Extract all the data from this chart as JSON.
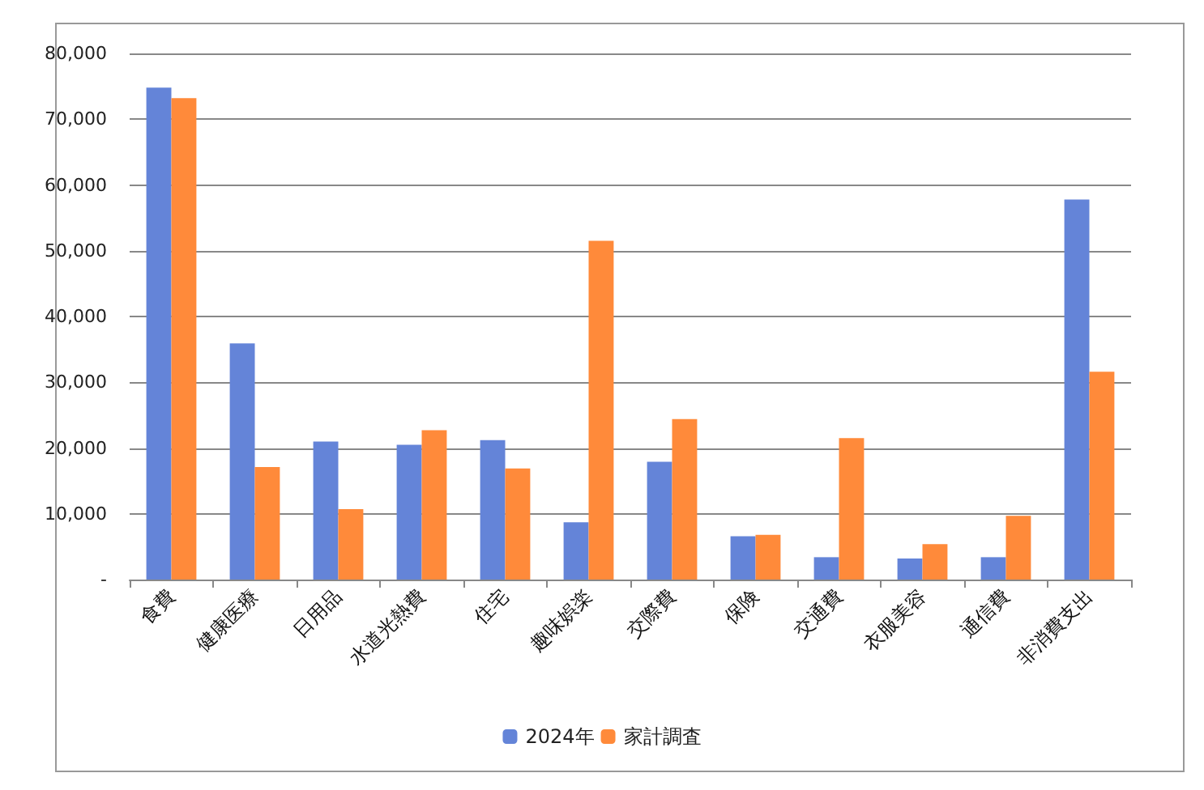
{
  "chart_data": {
    "type": "bar",
    "categories": [
      "食費",
      "健康医療",
      "日用品",
      "水道光熱費",
      "住宅",
      "趣味娯楽",
      "交際費",
      "保険",
      "交通費",
      "衣服美容",
      "通信費",
      "非消費支出"
    ],
    "series": [
      {
        "name": "2024年",
        "color": "#6484d8",
        "values": [
          74800,
          35900,
          21000,
          20500,
          21200,
          8700,
          17900,
          6600,
          3400,
          3200,
          3400,
          57800
        ]
      },
      {
        "name": "家計調査",
        "color": "#ff8a3a",
        "values": [
          73200,
          17100,
          10700,
          22700,
          16900,
          51500,
          24400,
          6800,
          21500,
          5400,
          9700,
          31600
        ]
      }
    ],
    "ylim": [
      0,
      80000
    ],
    "yticks": [
      {
        "value": 0,
        "label": "-"
      },
      {
        "value": 10000,
        "label": "10,000"
      },
      {
        "value": 20000,
        "label": "20,000"
      },
      {
        "value": 30000,
        "label": "30,000"
      },
      {
        "value": 40000,
        "label": "40,000"
      },
      {
        "value": 50000,
        "label": "50,000"
      },
      {
        "value": 60000,
        "label": "60,000"
      },
      {
        "value": 70000,
        "label": "70,000"
      },
      {
        "value": 80000,
        "label": "80,000"
      }
    ],
    "grid": "y",
    "legend": "bottom"
  }
}
